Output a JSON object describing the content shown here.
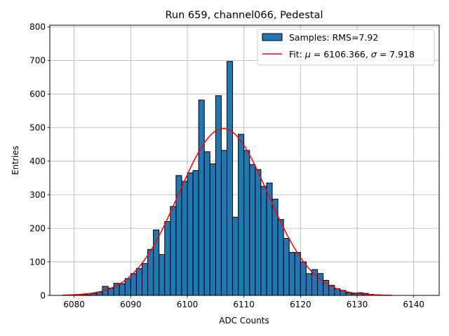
{
  "chart_data": {
    "type": "bar",
    "title": "Run 659, channel066, Pedestal",
    "xlabel": "ADC Counts",
    "ylabel": "Entries",
    "xlim": [
      6075.7,
      6144.5
    ],
    "ylim": [
      0,
      805
    ],
    "grid": true,
    "legend_position": "top-right",
    "x_ticks": [
      6080,
      6090,
      6100,
      6110,
      6120,
      6130,
      6140
    ],
    "y_ticks": [
      0,
      100,
      200,
      300,
      400,
      500,
      600,
      700,
      800
    ],
    "bar_color": "#1f77b4",
    "fit_color": "#ff0000",
    "bins": {
      "start": 6078,
      "width": 1,
      "values": [
        1,
        1,
        1,
        2,
        2,
        6,
        10,
        27,
        22,
        36,
        35,
        50,
        65,
        80,
        95,
        137,
        195,
        122,
        220,
        265,
        357,
        340,
        365,
        372,
        582,
        428,
        392,
        595,
        432,
        697,
        233,
        480,
        432,
        390,
        375,
        325,
        335,
        287,
        226,
        170,
        128,
        128,
        100,
        65,
        77,
        65,
        45,
        30,
        20,
        15,
        8,
        5,
        8,
        6,
        3,
        2,
        1,
        1
      ]
    },
    "series": [
      {
        "name": "Samples: RMS=7.92",
        "kind": "histogram"
      },
      {
        "name": "Fit",
        "kind": "gaussian",
        "mu": 6106.366,
        "sigma": 7.918,
        "amplitude": 497,
        "range": [
          6078,
          6136
        ]
      }
    ],
    "legend": [
      {
        "prefix": "Samples: RMS=7.92"
      },
      {
        "prefix": "Fit: ",
        "mu_symbol": "μ",
        "mu_text": " = 6106.366, ",
        "sigma_symbol": "σ",
        "sigma_text": " = 7.918"
      }
    ]
  }
}
